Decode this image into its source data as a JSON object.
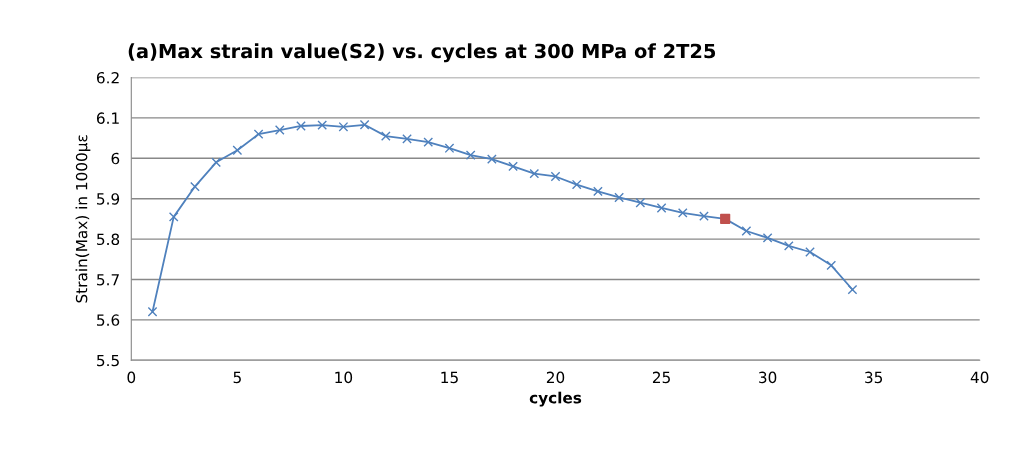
{
  "chart_data": {
    "type": "line",
    "title": "(a)Max strain value(S2) vs. cycles at 300 MPa of 2T25",
    "xlabel": "cycles",
    "ylabel": "Strain(Max) in 1000με",
    "xlim": [
      0,
      40
    ],
    "xticks": [
      0,
      5,
      10,
      15,
      20,
      25,
      30,
      35,
      40
    ],
    "ylim": [
      5.5,
      6.2
    ],
    "yticks": [
      5.5,
      5.6,
      5.7,
      5.8,
      5.9,
      6,
      6.1,
      6.2
    ],
    "grid": "y",
    "legend": false,
    "series": [
      {
        "color": "#4f81bd",
        "marker": "cross",
        "line_style": "solid",
        "x": [
          1,
          2,
          3,
          4,
          5,
          6,
          7,
          8,
          9,
          10,
          11,
          12,
          13,
          14,
          15,
          16,
          17,
          18,
          19,
          20,
          21,
          22,
          23,
          24,
          25,
          26,
          27,
          28,
          29,
          30,
          31,
          32,
          33,
          34
        ],
        "values": [
          5.62,
          5.855,
          5.93,
          5.99,
          6.02,
          6.06,
          6.07,
          6.08,
          6.082,
          6.078,
          6.083,
          6.055,
          6.048,
          6.04,
          6.025,
          6.008,
          5.998,
          5.98,
          5.962,
          5.955,
          5.935,
          5.918,
          5.903,
          5.89,
          5.877,
          5.865,
          5.857,
          5.85,
          5.82,
          5.803,
          5.783,
          5.768,
          5.735,
          5.675
        ]
      },
      {
        "type": "scatter",
        "color": "#c0504d",
        "marker": "square",
        "x": [
          28
        ],
        "values": [
          5.85
        ]
      }
    ]
  }
}
